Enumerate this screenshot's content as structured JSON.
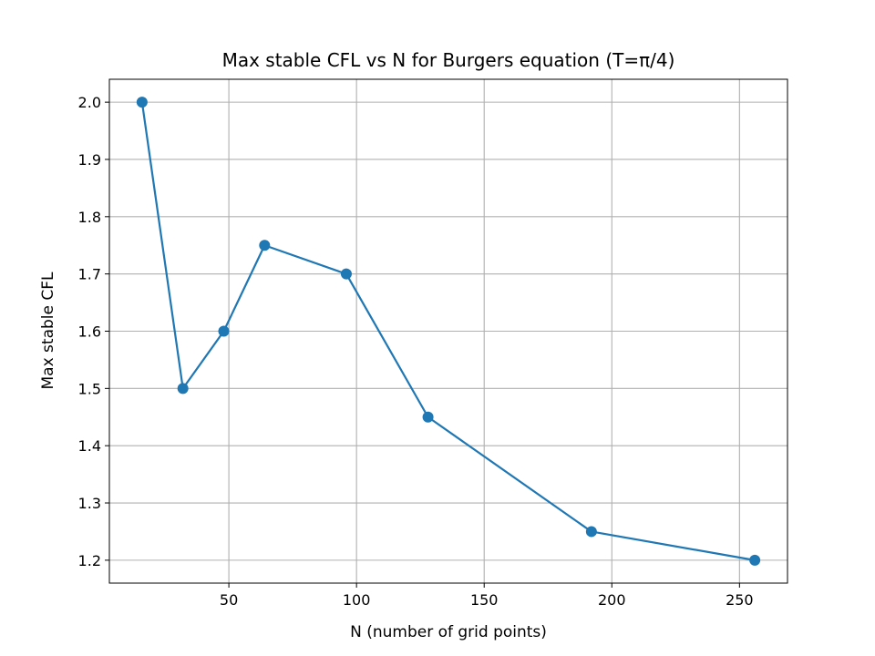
{
  "chart_data": {
    "type": "line",
    "title": "Max stable CFL vs N for Burgers equation (T=π/4)",
    "xlabel": "N (number of grid points)",
    "ylabel": "Max stable CFL",
    "xlim": [
      3.2,
      268.8
    ],
    "ylim": [
      1.16,
      2.04
    ],
    "x_ticks": [
      50,
      100,
      150,
      200,
      250
    ],
    "y_ticks": [
      1.2,
      1.3,
      1.4,
      1.5,
      1.6,
      1.7,
      1.8,
      1.9,
      2.0
    ],
    "x_tick_labels": [
      "50",
      "100",
      "150",
      "200",
      "250"
    ],
    "y_tick_labels": [
      "1.2",
      "1.3",
      "1.4",
      "1.5",
      "1.6",
      "1.7",
      "1.8",
      "1.9",
      "2.0"
    ],
    "grid": true,
    "marker": "circle",
    "series": [
      {
        "color": "#1f77b4",
        "x": [
          16,
          32,
          48,
          64,
          96,
          128,
          192,
          256
        ],
        "y": [
          2.0,
          1.5,
          1.6,
          1.75,
          1.7,
          1.45,
          1.25,
          1.2
        ]
      }
    ]
  }
}
